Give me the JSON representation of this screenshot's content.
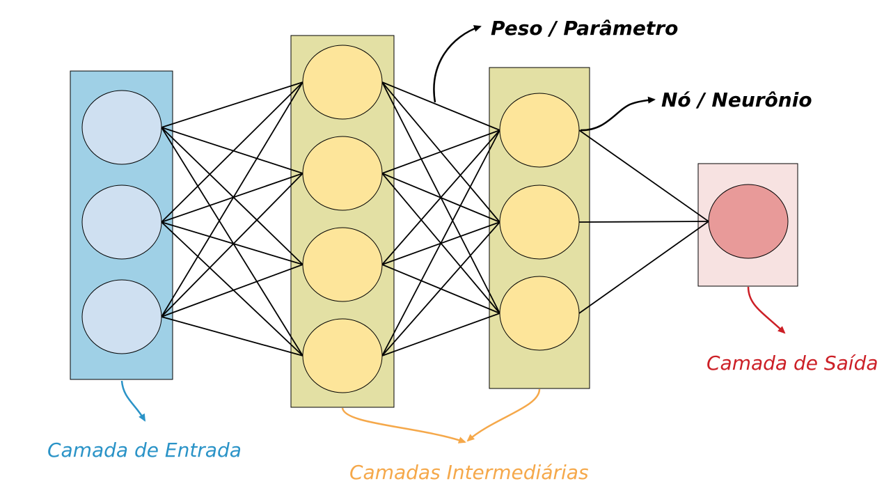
{
  "title": "Neural network architecture diagram",
  "labels": {
    "input_layer": "Camada de Entrada",
    "hidden_layers": "Camadas Intermediárias",
    "output_layer": "Camada de Saída",
    "weight": "Peso / Parâmetro",
    "node": "Nó / Neurônio"
  },
  "layers": [
    {
      "name": "input",
      "nodes": 3
    },
    {
      "name": "hidden-1",
      "nodes": 4
    },
    {
      "name": "hidden-2",
      "nodes": 3
    },
    {
      "name": "output",
      "nodes": 1
    }
  ],
  "colors": {
    "input_box": "#9fd0e6",
    "input_node": "#cfe0f1",
    "hidden_box": "#e3e0a4",
    "hidden_node": "#fde59a",
    "output_box": "#f7e2e1",
    "output_node": "#e89a99",
    "input_text": "#2a93c7",
    "hidden_text": "#f5a84a",
    "output_text": "#cc1f26",
    "black": "#000000"
  }
}
